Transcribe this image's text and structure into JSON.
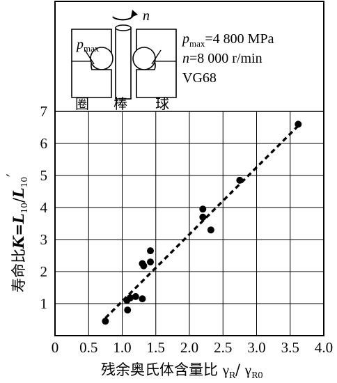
{
  "chart_data": {
    "type": "scatter",
    "ylabel_prefix": "寿命比",
    "ylabel_K": "K",
    "ylabel_eq": "=",
    "ylabel_L": "L",
    "ylabel_sub": "10",
    "ylabel_slash": "/",
    "ylabel_L2": "L",
    "ylabel_sub2": "10",
    "ylabel_prime": "′",
    "xlabel_prefix": "残余奥氏体含量比 ",
    "xlabel_g1": "γ",
    "xlabel_sub1": "R",
    "xlabel_slash": "/ ",
    "xlabel_g2": "γ",
    "xlabel_sub2": "R0",
    "xlim": [
      0,
      4.0
    ],
    "ylim": [
      0,
      7
    ],
    "x_ticks": [
      "0",
      "0.5",
      "1.0",
      "1.5",
      "2.0",
      "2.5",
      "3.0",
      "3.5",
      "4.0"
    ],
    "x_tick_values": [
      0,
      0.5,
      1.0,
      1.5,
      2.0,
      2.5,
      3.0,
      3.5,
      4.0
    ],
    "y_ticks": [
      "1",
      "2",
      "3",
      "4",
      "5",
      "6",
      "7"
    ],
    "y_tick_values": [
      1,
      2,
      3,
      4,
      5,
      6,
      7
    ],
    "grid": true,
    "points": [
      {
        "x": 0.75,
        "y": 0.45
      },
      {
        "x": 1.08,
        "y": 0.8
      },
      {
        "x": 1.07,
        "y": 1.1
      },
      {
        "x": 1.12,
        "y": 1.18
      },
      {
        "x": 1.2,
        "y": 1.22
      },
      {
        "x": 1.3,
        "y": 1.15
      },
      {
        "x": 1.3,
        "y": 2.25
      },
      {
        "x": 1.32,
        "y": 2.18
      },
      {
        "x": 1.42,
        "y": 2.3
      },
      {
        "x": 1.42,
        "y": 2.65
      },
      {
        "x": 2.2,
        "y": 3.95
      },
      {
        "x": 2.2,
        "y": 3.7
      },
      {
        "x": 2.32,
        "y": 3.3
      },
      {
        "x": 2.75,
        "y": 4.85
      },
      {
        "x": 3.62,
        "y": 6.6
      }
    ],
    "trend_line": {
      "style": "dashed",
      "x": [
        0.75,
        3.62
      ],
      "y": [
        0.55,
        6.55
      ]
    }
  },
  "inset": {
    "rotation_label": "n",
    "pmax_p": "p",
    "pmax_sub": "max",
    "param_pmax_p": "p",
    "param_pmax_sub": "max",
    "param_pmax_value": "=4 800 MPa",
    "param_n_var": "n",
    "param_n_value": "=8 000 r/min",
    "param_oil": "VG68",
    "part_ring": "圈",
    "part_rod": "棒",
    "part_ball": "球"
  }
}
